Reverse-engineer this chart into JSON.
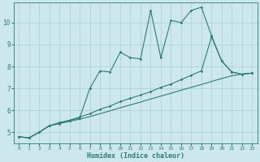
{
  "xlabel": "Humidex (Indice chaleur)",
  "x_ticks": [
    0,
    1,
    2,
    3,
    4,
    5,
    6,
    7,
    8,
    9,
    10,
    11,
    12,
    13,
    14,
    15,
    16,
    17,
    18,
    19,
    20,
    21,
    22,
    23
  ],
  "y_ticks": [
    5,
    6,
    7,
    8,
    9,
    10
  ],
  "ylim": [
    4.5,
    10.9
  ],
  "xlim": [
    -0.5,
    23.5
  ],
  "bg_color": "#cce8ec",
  "line_color": "#2e7d6e",
  "grid_color": "#aacfd5",
  "line1_x": [
    0,
    1,
    2,
    3,
    4,
    5,
    6,
    7,
    8,
    9,
    10,
    11,
    12,
    13,
    14,
    15,
    16,
    17,
    18,
    19,
    20,
    21,
    22,
    23
  ],
  "line1_y": [
    4.8,
    4.75,
    5.0,
    5.3,
    5.4,
    5.55,
    5.65,
    7.0,
    7.8,
    7.75,
    8.65,
    8.4,
    8.35,
    10.55,
    8.4,
    10.1,
    10.0,
    10.55,
    10.7,
    9.4,
    8.25,
    7.75,
    7.65,
    7.7
  ],
  "line2_x": [
    0,
    1,
    2,
    3,
    4,
    5,
    6,
    7,
    8,
    9,
    10,
    11,
    12,
    13,
    14,
    15,
    16,
    17,
    18,
    19,
    20,
    21,
    22,
    23
  ],
  "line2_y": [
    4.8,
    4.75,
    5.0,
    5.3,
    5.45,
    5.55,
    5.7,
    5.85,
    6.05,
    6.2,
    6.4,
    6.55,
    6.7,
    6.85,
    7.05,
    7.2,
    7.4,
    7.6,
    7.8,
    9.35,
    8.25,
    7.75,
    7.65,
    7.7
  ],
  "line3_x": [
    0,
    1,
    2,
    3,
    4,
    5,
    6,
    7,
    8,
    9,
    10,
    11,
    12,
    13,
    14,
    15,
    16,
    17,
    18,
    19,
    20,
    21,
    22,
    23
  ],
  "line3_y": [
    4.8,
    4.75,
    5.0,
    5.3,
    5.4,
    5.5,
    5.6,
    5.72,
    5.85,
    5.98,
    6.12,
    6.25,
    6.38,
    6.52,
    6.65,
    6.78,
    6.92,
    7.05,
    7.18,
    7.32,
    7.45,
    7.58,
    7.65,
    7.7
  ]
}
